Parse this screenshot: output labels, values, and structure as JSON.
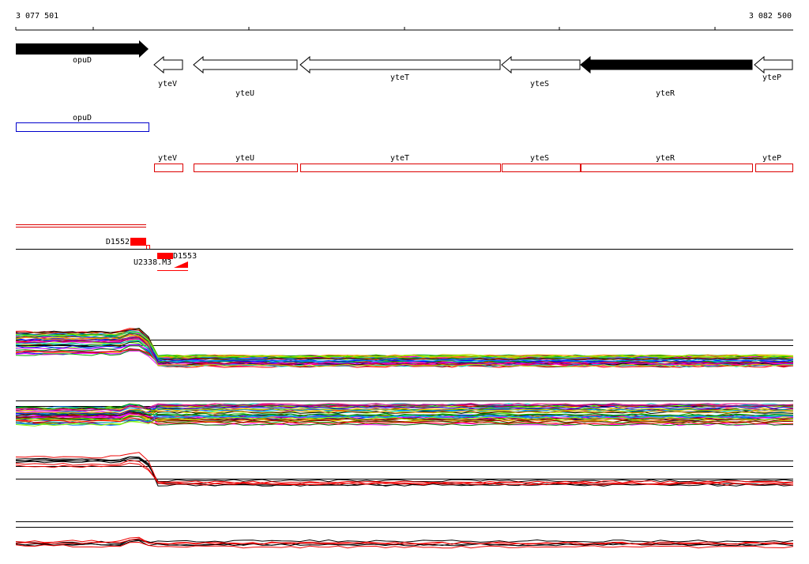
{
  "ruler": {
    "start": "3 077 501",
    "end": "3 082 500"
  },
  "gene_track": {
    "genes": [
      {
        "label": "opuD"
      },
      {
        "label": "yteV"
      },
      {
        "label": "yteU"
      },
      {
        "label": "yteT"
      },
      {
        "label": "yteS"
      },
      {
        "label": "yteR"
      },
      {
        "label": "yteP"
      }
    ]
  },
  "annotation_track": {
    "genes": [
      {
        "label": "opuD"
      },
      {
        "label": "yteV"
      },
      {
        "label": "yteU"
      },
      {
        "label": "yteT"
      },
      {
        "label": "yteS"
      },
      {
        "label": "yteR"
      },
      {
        "label": "yteP"
      }
    ]
  },
  "probes": [
    {
      "label": "D1552"
    },
    {
      "label": "D1553"
    },
    {
      "label": "U2338.M3"
    }
  ]
}
